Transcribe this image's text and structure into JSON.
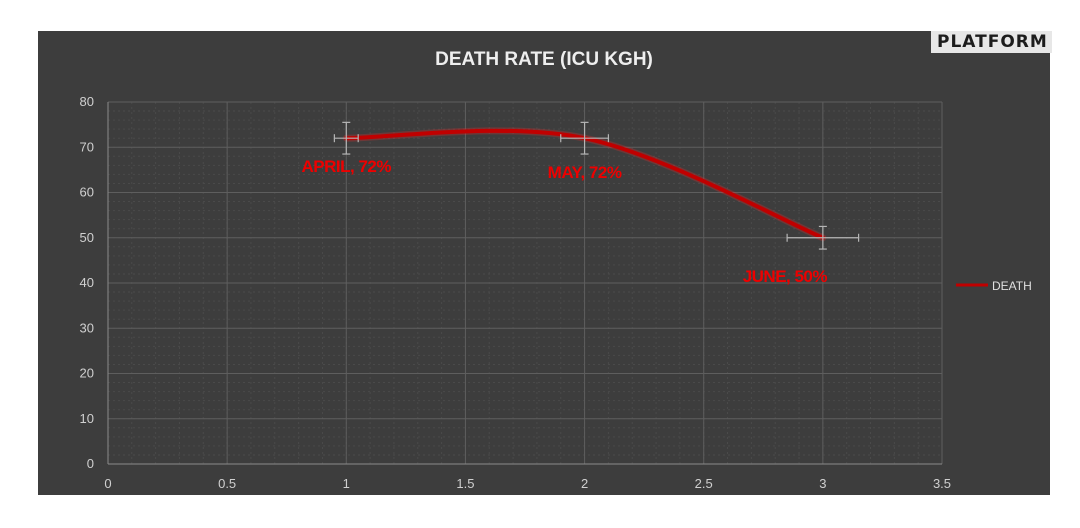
{
  "logo": "PLATFORM",
  "chart_data": {
    "type": "line",
    "title": "DEATH RATE (ICU KGH)",
    "xlabel": "",
    "ylabel": "",
    "xlim": [
      0,
      3.5
    ],
    "ylim": [
      0,
      80
    ],
    "x_ticks": [
      "0",
      "0.5",
      "1",
      "1.5",
      "2",
      "2.5",
      "3",
      "3.5"
    ],
    "y_ticks": [
      "0",
      "10",
      "20",
      "30",
      "40",
      "50",
      "60",
      "70",
      "80"
    ],
    "grid": true,
    "legend": "right",
    "smooth": true,
    "series": [
      {
        "name": "DEATH",
        "color": "#c00000",
        "points": [
          {
            "x": 1,
            "y": 72,
            "label": "APRIL, 72%",
            "y_err": 3.5,
            "x_err": 0.05
          },
          {
            "x": 2,
            "y": 72,
            "label": "MAY, 72%",
            "y_err": 3.5,
            "x_err": 0.1
          },
          {
            "x": 3,
            "y": 50,
            "label": "JUNE, 50%",
            "y_err": 2.5,
            "x_err": 0.15
          }
        ]
      }
    ]
  }
}
